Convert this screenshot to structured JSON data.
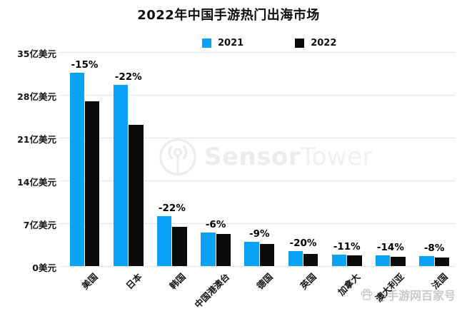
{
  "title": "2022年中国手游热门出海市场",
  "chart_data": {
    "type": "bar",
    "title": "2022年中国手游热门出海市场",
    "categories": [
      "美国",
      "日本",
      "韩国",
      "中国港澳台",
      "德国",
      "英国",
      "加拿大",
      "澳大利亚",
      "法国"
    ],
    "series": [
      {
        "name": "2021",
        "color": "#0aa2f5",
        "values": [
          31.6,
          29.6,
          8.2,
          5.5,
          4.0,
          2.5,
          1.9,
          1.7,
          1.6
        ]
      },
      {
        "name": "2022",
        "color": "#0a0a0a",
        "values": [
          26.9,
          23.1,
          6.4,
          5.2,
          3.6,
          2.0,
          1.7,
          1.5,
          1.45
        ]
      }
    ],
    "yoy_change_labels": [
      "-15%",
      "-22%",
      "-22%",
      "-6%",
      "-9%",
      "-20%",
      "-11%",
      "-14%",
      "-8%"
    ],
    "unit": "亿美元",
    "ylim": [
      0,
      35
    ],
    "yticks": [
      {
        "value": 35,
        "label": "35亿美元"
      },
      {
        "value": 28,
        "label": "28亿美元"
      },
      {
        "value": 21,
        "label": "21亿美元"
      },
      {
        "value": 14,
        "label": "14亿美元"
      },
      {
        "value": 7,
        "label": "7亿美元"
      },
      {
        "value": 0,
        "label": "0美元"
      }
    ],
    "grid": "horizontal-dotted",
    "legend_position": "top-center",
    "xlabel": "",
    "ylabel": ""
  },
  "legend": {
    "items": [
      {
        "label": "2021",
        "color": "#0aa2f5"
      },
      {
        "label": "2022",
        "color": "#0a0a0a"
      }
    ]
  },
  "watermark": {
    "brand_bold": "Sensor",
    "brand_light": "Tower",
    "color": "#ececec"
  },
  "credit": {
    "text": "@手游网百家号",
    "color": "#c9c9c9"
  }
}
